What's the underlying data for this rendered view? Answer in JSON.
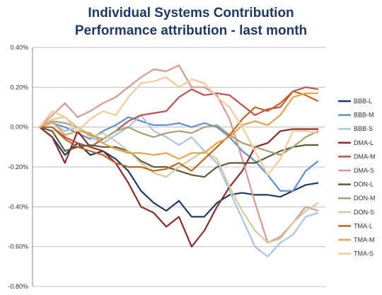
{
  "chart_data": {
    "type": "line",
    "title": [
      "Individual Systems Contribution",
      "Performance attribution - last month"
    ],
    "xlabel": "",
    "ylabel": "",
    "ylim": [
      -0.8,
      0.4
    ],
    "yticks": [
      "0.40%",
      "0.20%",
      "0.00%",
      "-0.20%",
      "-0.40%",
      "-0.60%",
      "-0.80%"
    ],
    "ytick_values": [
      0.4,
      0.2,
      0.0,
      -0.2,
      -0.4,
      -0.6,
      -0.8
    ],
    "grid": "horizontal",
    "legend": "right",
    "x": [
      0,
      1,
      2,
      3,
      4,
      5,
      6,
      7,
      8,
      9,
      10,
      11,
      12,
      13,
      14,
      15,
      16,
      17,
      18,
      19,
      20,
      21,
      22
    ],
    "series": [
      {
        "name": "BBB-L",
        "color": "#1f3864",
        "values": [
          0,
          -0.05,
          -0.14,
          -0.08,
          -0.14,
          -0.12,
          -0.16,
          -0.22,
          -0.32,
          -0.38,
          -0.42,
          -0.37,
          -0.45,
          -0.45,
          -0.38,
          -0.34,
          -0.33,
          -0.34,
          -0.34,
          -0.35,
          -0.32,
          -0.29,
          -0.28
        ]
      },
      {
        "name": "BBB-M",
        "color": "#5b8fd6",
        "values": [
          0,
          0.02,
          0.0,
          -0.03,
          -0.06,
          -0.02,
          0.01,
          0.05,
          0.03,
          0.01,
          0.01,
          0.02,
          0.0,
          0.02,
          0.0,
          -0.05,
          -0.12,
          -0.17,
          -0.24,
          -0.32,
          -0.32,
          -0.22,
          -0.17
        ]
      },
      {
        "name": "BBB-S",
        "color": "#a9c3e6",
        "values": [
          0,
          0.02,
          -0.02,
          0.0,
          -0.05,
          -0.08,
          -0.04,
          0.0,
          0.06,
          -0.02,
          -0.05,
          -0.09,
          -0.05,
          -0.12,
          -0.18,
          -0.32,
          -0.46,
          -0.6,
          -0.65,
          -0.58,
          -0.54,
          -0.45,
          -0.43
        ]
      },
      {
        "name": "DMA-L",
        "color": "#8b2b2b",
        "values": [
          0,
          -0.05,
          -0.18,
          -0.02,
          -0.1,
          -0.12,
          -0.18,
          -0.28,
          -0.4,
          -0.43,
          -0.5,
          -0.45,
          -0.6,
          -0.52,
          -0.4,
          -0.3,
          -0.22,
          -0.1,
          -0.08,
          -0.02,
          -0.01,
          -0.01,
          -0.01
        ]
      },
      {
        "name": "DMA-M",
        "color": "#c0504d",
        "values": [
          0,
          0.0,
          -0.05,
          -0.08,
          -0.1,
          -0.06,
          -0.02,
          0.03,
          0.06,
          0.07,
          0.08,
          0.15,
          0.19,
          0.16,
          0.17,
          0.16,
          0.11,
          0.06,
          0.09,
          0.1,
          0.18,
          0.2,
          0.19
        ]
      },
      {
        "name": "DMA-S",
        "color": "#d99694",
        "values": [
          0,
          0.06,
          0.12,
          0.05,
          0.08,
          0.12,
          0.15,
          0.2,
          0.25,
          0.29,
          0.28,
          0.31,
          0.2,
          0.2,
          0.16,
          0.04,
          -0.16,
          -0.38,
          -0.58,
          -0.55,
          -0.48,
          -0.4,
          -0.42
        ]
      },
      {
        "name": "DON-L",
        "color": "#5e5a3a",
        "values": [
          0,
          -0.02,
          -0.12,
          -0.1,
          -0.09,
          -0.1,
          -0.1,
          -0.12,
          -0.17,
          -0.2,
          -0.2,
          -0.22,
          -0.24,
          -0.25,
          -0.2,
          -0.18,
          -0.18,
          -0.18,
          -0.15,
          -0.12,
          -0.1,
          -0.09,
          -0.09
        ]
      },
      {
        "name": "DON-M",
        "color": "#a6a070",
        "values": [
          0,
          0.03,
          0.02,
          0.0,
          -0.04,
          -0.06,
          -0.02,
          0.0,
          -0.03,
          -0.05,
          -0.03,
          -0.02,
          -0.03,
          0.0,
          0.01,
          -0.04,
          -0.08,
          -0.1,
          -0.12,
          -0.14,
          -0.1,
          -0.05,
          -0.02
        ]
      },
      {
        "name": "DON-S",
        "color": "#cfcc9f",
        "values": [
          0,
          0.04,
          0.05,
          0.0,
          -0.05,
          -0.03,
          -0.07,
          -0.12,
          -0.18,
          -0.23,
          -0.25,
          -0.2,
          -0.16,
          -0.12,
          -0.16,
          -0.3,
          -0.42,
          -0.52,
          -0.58,
          -0.56,
          -0.48,
          -0.42,
          -0.38
        ]
      },
      {
        "name": "TMA-L",
        "color": "#c0661c",
        "values": [
          0,
          0.0,
          -0.06,
          -0.1,
          -0.12,
          -0.14,
          -0.18,
          -0.2,
          -0.2,
          -0.22,
          -0.21,
          -0.18,
          -0.22,
          -0.16,
          -0.1,
          -0.04,
          0.04,
          0.1,
          0.08,
          0.12,
          0.18,
          0.16,
          0.13
        ]
      },
      {
        "name": "TMA-M",
        "color": "#e4a24a",
        "values": [
          0,
          0.03,
          -0.04,
          -0.02,
          -0.03,
          -0.08,
          -0.11,
          -0.13,
          -0.13,
          -0.14,
          -0.13,
          -0.16,
          -0.13,
          -0.13,
          -0.08,
          -0.05,
          0.01,
          0.03,
          0.01,
          0.06,
          0.15,
          0.17,
          0.17
        ]
      },
      {
        "name": "TMA-S",
        "color": "#f5c99a",
        "values": [
          0,
          0.08,
          0.05,
          -0.02,
          0.04,
          0.08,
          0.06,
          0.15,
          0.22,
          0.23,
          0.25,
          0.2,
          0.24,
          0.22,
          0.15,
          0.1,
          0.0,
          -0.12,
          -0.24,
          -0.16,
          -0.02,
          -0.02,
          -0.03
        ]
      }
    ]
  }
}
